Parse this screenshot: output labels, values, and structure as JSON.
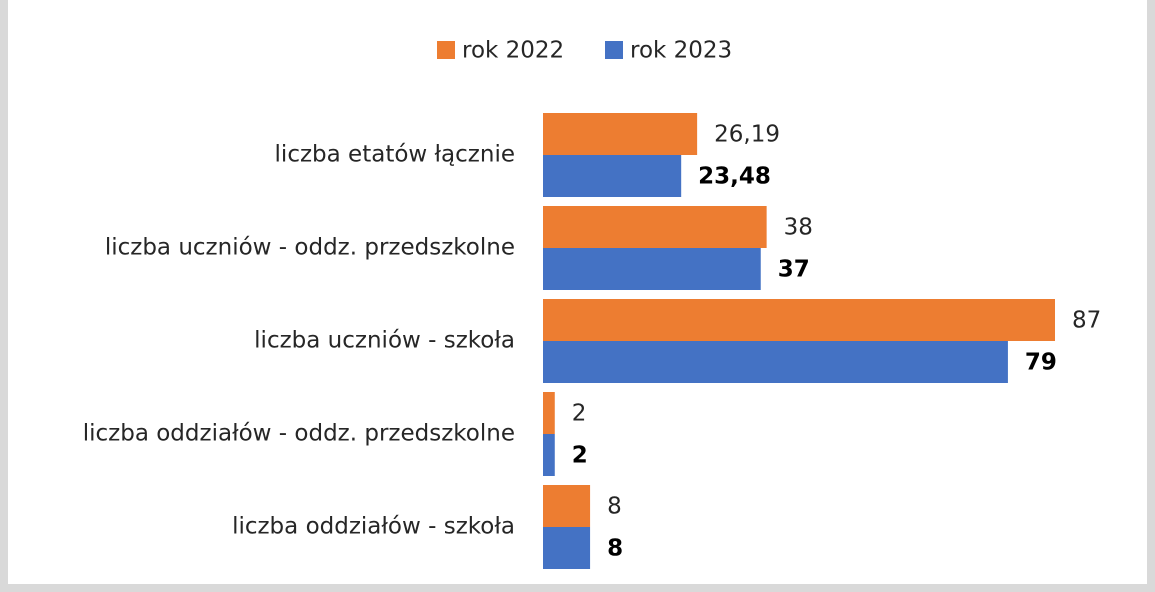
{
  "chart_data": {
    "type": "bar",
    "orientation": "horizontal",
    "categories": [
      "liczba etatów łącznie",
      "liczba uczniów - oddz. przedszkolne",
      "liczba uczniów - szkoła",
      "liczba oddziałów - oddz. przedszkolne",
      "liczba oddziałów - szkoła"
    ],
    "series": [
      {
        "name": "rok 2022",
        "color": "#ED7D31",
        "values": [
          26.19,
          38,
          87,
          2,
          8
        ],
        "value_labels": [
          "26,19",
          "38",
          "87",
          "2",
          "8"
        ]
      },
      {
        "name": "rok 2023",
        "color": "#4472C4",
        "values": [
          23.48,
          37,
          79,
          2,
          8
        ],
        "value_labels": [
          "23,48",
          "37",
          "79",
          "2",
          "8"
        ]
      }
    ],
    "xlim": [
      0,
      87
    ],
    "legend": "top"
  }
}
